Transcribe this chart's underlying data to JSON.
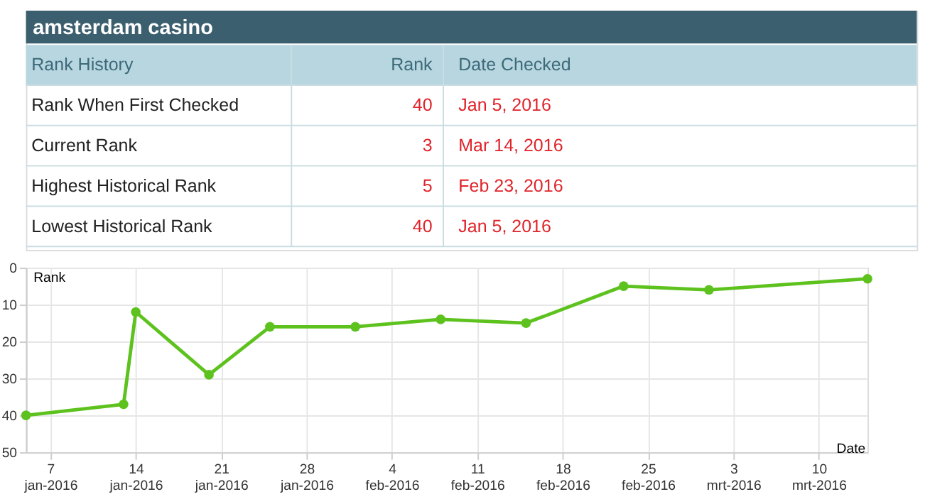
{
  "chart_data": {
    "type": "line",
    "title": "amsterdam casino",
    "annotations": [
      "Rank History",
      "Rank",
      "Date Checked",
      "Rank When First Checked",
      "40",
      "Jan 5, 2016",
      "Current Rank",
      "3",
      "Mar 14, 2016",
      "Highest Historical Rank",
      "5",
      "Feb 23, 2016",
      "Lowest Historical Rank",
      "40",
      "Jan 5, 2016"
    ],
    "xlabel": "Date",
    "ylabel": "Rank",
    "x": [
      "2016-01-05",
      "2016-01-13",
      "2016-01-14",
      "2016-01-20",
      "2016-01-25",
      "2016-02-01",
      "2016-02-08",
      "2016-02-15",
      "2016-02-23",
      "2016-03-01",
      "2016-03-14"
    ],
    "series": [
      {
        "color": "#5dc21e",
        "values": [
          40,
          37,
          12,
          29,
          16,
          16,
          14,
          15,
          5,
          6,
          3
        ]
      }
    ],
    "xlim": [
      "2016-01-05",
      "2016-03-14"
    ],
    "xticks": [
      {
        "value": "2016-01-07",
        "label": "7\njan-2016"
      },
      {
        "value": "2016-01-14",
        "label": "14\njan-2016"
      },
      {
        "value": "2016-01-21",
        "label": "21\njan-2016"
      },
      {
        "value": "2016-01-28",
        "label": "28\njan-2016"
      },
      {
        "value": "2016-02-04",
        "label": "4\nfeb-2016"
      },
      {
        "value": "2016-02-11",
        "label": "11\nfeb-2016"
      },
      {
        "value": "2016-02-18",
        "label": "18\nfeb-2016"
      },
      {
        "value": "2016-02-25",
        "label": "25\nfeb-2016"
      },
      {
        "value": "2016-03-03",
        "label": "3\nmrt-2016"
      },
      {
        "value": "2016-03-10",
        "label": "10\nmrt-2016"
      }
    ],
    "ylim": [
      50,
      0
    ],
    "yticks": [
      0,
      10,
      20,
      30,
      40,
      50
    ],
    "grid": true,
    "marker": "circle",
    "line_style": "solid"
  }
}
